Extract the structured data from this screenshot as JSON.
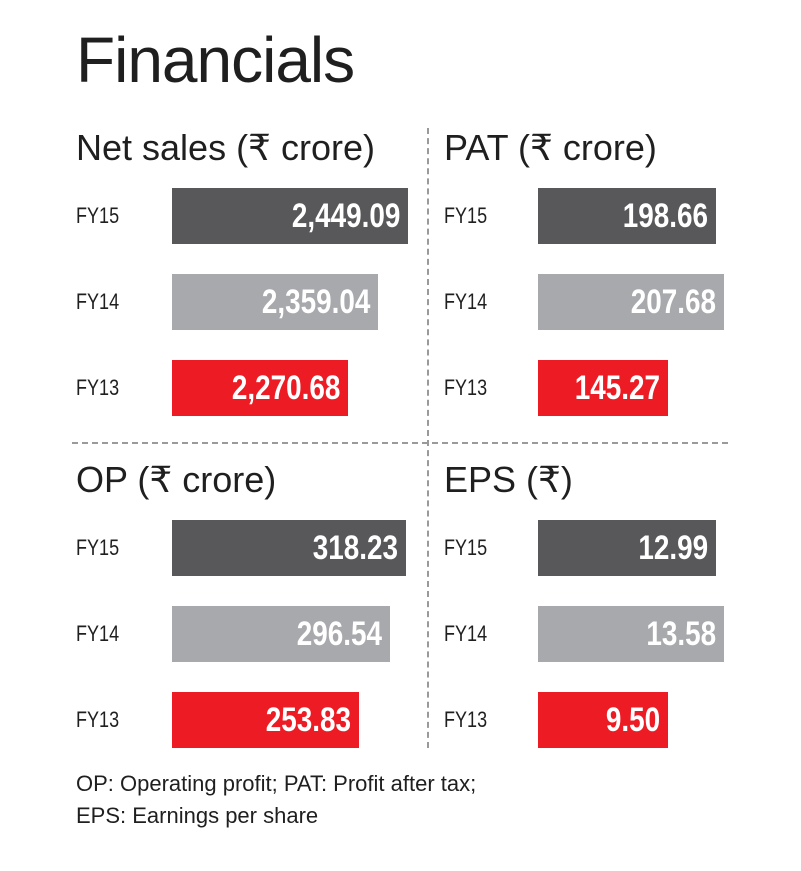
{
  "title": "Financials",
  "colors": {
    "FY15": "#58585a",
    "FY14": "#a7a9ac",
    "FY13": "#ed1c24"
  },
  "chart_data": [
    {
      "type": "bar",
      "title": "Net sales (₹ crore)",
      "categories": [
        "FY15",
        "FY14",
        "FY13"
      ],
      "values": [
        2449.09,
        2359.04,
        2270.68
      ],
      "value_labels": [
        "2,449.09",
        "2,359.04",
        "2,270.68"
      ]
    },
    {
      "type": "bar",
      "title": "PAT (₹ crore)",
      "categories": [
        "FY15",
        "FY14",
        "FY13"
      ],
      "values": [
        198.66,
        207.68,
        145.27
      ],
      "value_labels": [
        "198.66",
        "207.68",
        "145.27"
      ]
    },
    {
      "type": "bar",
      "title": "OP (₹ crore)",
      "categories": [
        "FY15",
        "FY14",
        "FY13"
      ],
      "values": [
        318.23,
        296.54,
        253.83
      ],
      "value_labels": [
        "318.23",
        "296.54",
        "253.83"
      ]
    },
    {
      "type": "bar",
      "title": "EPS (₹)",
      "categories": [
        "FY15",
        "FY14",
        "FY13"
      ],
      "values": [
        12.99,
        13.58,
        9.5
      ],
      "value_labels": [
        "12.99",
        "13.58",
        "9.50"
      ]
    }
  ],
  "footnote": {
    "line1": "OP: Operating profit; PAT: Profit after tax;",
    "line2": "EPS: Earnings per share"
  }
}
